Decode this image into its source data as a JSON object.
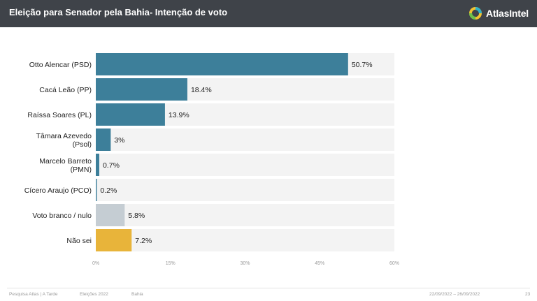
{
  "header": {
    "title": "Eleição para Senador pela Bahia- Intenção de voto",
    "brand": "AtlasIntel",
    "brand_logo_icon": "atlasintel-logo-icon"
  },
  "chart_data": {
    "type": "bar",
    "orientation": "horizontal",
    "categories": [
      [
        "Otto Alencar (PSD)"
      ],
      [
        "Cacá Leão (PP)"
      ],
      [
        "Raíssa Soares (PL)"
      ],
      [
        "Tâmara Azevedo",
        "(Psol)"
      ],
      [
        "Marcelo Barreto",
        "(PMN)"
      ],
      [
        "Cícero Araujo (PCO)"
      ],
      [
        "Voto branco / nulo"
      ],
      [
        "Não sei"
      ]
    ],
    "values": [
      50.7,
      18.4,
      13.9,
      3,
      0.7,
      0.2,
      5.8,
      7.2
    ],
    "value_labels": [
      "50.7%",
      "18.4%",
      "13.9%",
      "3%",
      "0.7%",
      "0.2%",
      "5.8%",
      "7.2%"
    ],
    "colors": [
      "#3d7f9a",
      "#3d7f9a",
      "#3d7f9a",
      "#3d7f9a",
      "#3d7f9a",
      "#3d7f9a",
      "#c5cdd3",
      "#e8b43a"
    ],
    "track_color": "#f3f3f3",
    "xlim": [
      0,
      60
    ],
    "xticks": [
      0,
      15,
      30,
      45,
      60
    ],
    "xtick_labels": [
      "0%",
      "15%",
      "30%",
      "45%",
      "60%"
    ],
    "grid": false,
    "legend": "none"
  },
  "footer": {
    "source": "Pesquisa Atlas | A Tarde",
    "election": "Eleições 2022",
    "state": "Bahia",
    "dates": "22/09/2022 – 26/09/2022",
    "page": "23"
  }
}
